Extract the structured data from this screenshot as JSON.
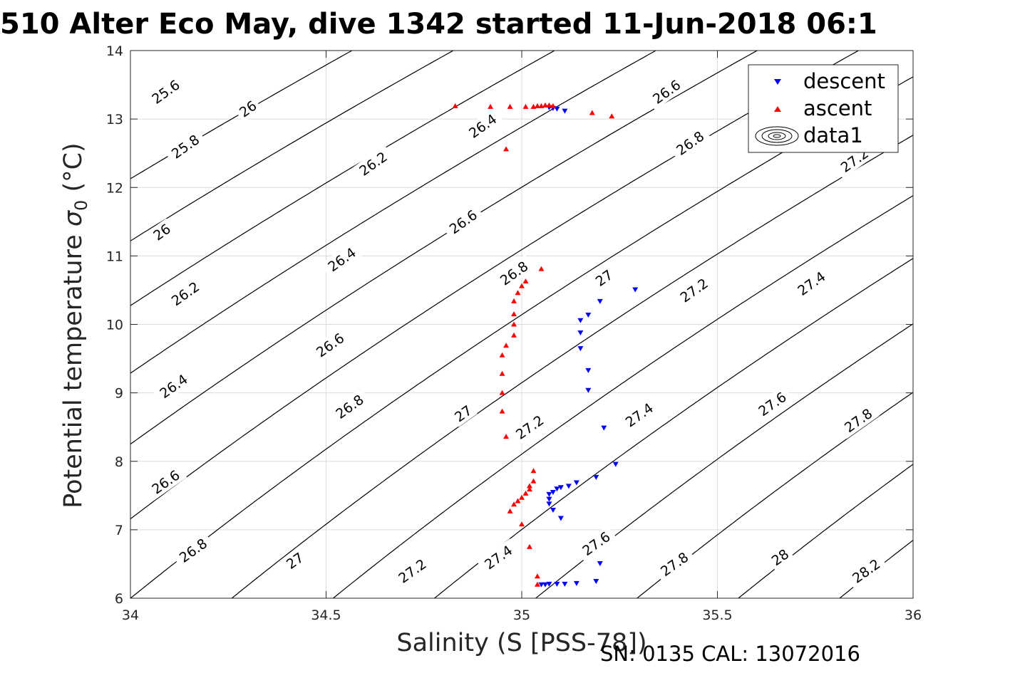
{
  "title": "510 Alter Eco May, dive 1342 started 11-Jun-2018 06:1",
  "footer": "SN: 0135  CAL: 13072016",
  "chart_data": {
    "type": "scatter",
    "xlabel": "Salinity (S [PSS-78])",
    "ylabel_main": "Potential temperature",
    "ylabel_symbol": "σ",
    "ylabel_subscript": "0",
    "ylabel_unit": "(°C)",
    "xlim": [
      34,
      36
    ],
    "ylim": [
      6,
      14
    ],
    "xticks": [
      34,
      34.5,
      35,
      35.5,
      36
    ],
    "xtick_labels": [
      "34",
      "34.5",
      "35",
      "35.5",
      "36"
    ],
    "yticks": [
      6,
      7,
      8,
      9,
      10,
      11,
      12,
      13,
      14
    ],
    "ytick_labels": [
      "6",
      "7",
      "8",
      "9",
      "10",
      "11",
      "12",
      "13",
      "14"
    ],
    "grid": true,
    "legend_position": "top-right",
    "legend": [
      "descent",
      "ascent",
      "data1"
    ],
    "series": [
      {
        "name": "descent",
        "marker": "triangle-down",
        "color": "#0000ff",
        "points": [
          [
            35.07,
            13.17
          ],
          [
            35.08,
            13.16
          ],
          [
            35.09,
            13.15
          ],
          [
            35.11,
            13.12
          ],
          [
            35.29,
            10.51
          ],
          [
            35.2,
            10.34
          ],
          [
            35.17,
            10.14
          ],
          [
            35.15,
            10.06
          ],
          [
            35.15,
            9.88
          ],
          [
            35.15,
            9.65
          ],
          [
            35.17,
            9.33
          ],
          [
            35.17,
            9.04
          ],
          [
            35.21,
            8.49
          ],
          [
            35.24,
            7.96
          ],
          [
            35.19,
            7.77
          ],
          [
            35.14,
            7.69
          ],
          [
            35.12,
            7.64
          ],
          [
            35.1,
            7.62
          ],
          [
            35.09,
            7.6
          ],
          [
            35.08,
            7.55
          ],
          [
            35.07,
            7.52
          ],
          [
            35.07,
            7.45
          ],
          [
            35.07,
            7.38
          ],
          [
            35.08,
            7.29
          ],
          [
            35.1,
            7.17
          ],
          [
            35.2,
            6.51
          ],
          [
            35.19,
            6.25
          ],
          [
            35.14,
            6.22
          ],
          [
            35.11,
            6.21
          ],
          [
            35.09,
            6.21
          ],
          [
            35.07,
            6.21
          ],
          [
            35.06,
            6.2
          ],
          [
            35.05,
            6.2
          ]
        ]
      },
      {
        "name": "ascent",
        "marker": "triangle-up",
        "color": "#ff0000",
        "points": [
          [
            34.83,
            13.19
          ],
          [
            34.92,
            13.18
          ],
          [
            34.97,
            13.18
          ],
          [
            35.01,
            13.18
          ],
          [
            35.03,
            13.18
          ],
          [
            35.04,
            13.19
          ],
          [
            35.05,
            13.19
          ],
          [
            35.06,
            13.2
          ],
          [
            35.07,
            13.2
          ],
          [
            35.08,
            13.19
          ],
          [
            35.18,
            13.09
          ],
          [
            35.23,
            13.04
          ],
          [
            34.96,
            12.56
          ],
          [
            35.05,
            10.81
          ],
          [
            35.01,
            10.63
          ],
          [
            35.0,
            10.56
          ],
          [
            34.99,
            10.46
          ],
          [
            34.98,
            10.34
          ],
          [
            34.98,
            10.15
          ],
          [
            34.98,
            10.0
          ],
          [
            34.98,
            9.84
          ],
          [
            34.96,
            9.69
          ],
          [
            34.95,
            9.55
          ],
          [
            34.95,
            9.28
          ],
          [
            34.95,
            9.0
          ],
          [
            34.95,
            8.73
          ],
          [
            34.96,
            8.36
          ],
          [
            35.03,
            7.86
          ],
          [
            35.03,
            7.71
          ],
          [
            35.02,
            7.64
          ],
          [
            35.02,
            7.59
          ],
          [
            35.01,
            7.53
          ],
          [
            35.0,
            7.47
          ],
          [
            34.99,
            7.42
          ],
          [
            34.98,
            7.37
          ],
          [
            34.97,
            7.27
          ],
          [
            35.0,
            7.08
          ],
          [
            35.02,
            6.75
          ],
          [
            35.04,
            6.32
          ],
          [
            35.04,
            6.2
          ]
        ]
      }
    ],
    "contour_levels": [
      "25.6",
      "25.8",
      "26",
      "26.2",
      "26.4",
      "26.6",
      "26.8",
      "27",
      "27.2",
      "27.4",
      "27.6",
      "27.8",
      "28",
      "28.2"
    ],
    "contour_labels": [
      {
        "text": "25.6",
        "s": 34.09,
        "t": 13.4
      },
      {
        "text": "26",
        "s": 34.3,
        "t": 13.15
      },
      {
        "text": "25.8",
        "s": 34.14,
        "t": 12.6
      },
      {
        "text": "26.2",
        "s": 34.62,
        "t": 12.35
      },
      {
        "text": "26",
        "s": 34.08,
        "t": 11.35
      },
      {
        "text": "26.4",
        "s": 34.9,
        "t": 12.9
      },
      {
        "text": "26.6",
        "s": 35.37,
        "t": 13.4
      },
      {
        "text": "26.8",
        "s": 35.43,
        "t": 12.65
      },
      {
        "text": "27.2",
        "s": 35.85,
        "t": 12.4
      },
      {
        "text": "26.6",
        "s": 34.85,
        "t": 11.5
      },
      {
        "text": "26.4",
        "s": 34.54,
        "t": 10.95
      },
      {
        "text": "26.2",
        "s": 34.14,
        "t": 10.45
      },
      {
        "text": "26.8",
        "s": 34.98,
        "t": 10.75
      },
      {
        "text": "27",
        "s": 35.21,
        "t": 10.68
      },
      {
        "text": "27.2",
        "s": 35.44,
        "t": 10.5
      },
      {
        "text": "27.4",
        "s": 35.74,
        "t": 10.6
      },
      {
        "text": "26.6",
        "s": 34.51,
        "t": 9.7
      },
      {
        "text": "26.4",
        "s": 34.11,
        "t": 9.1
      },
      {
        "text": "26.8",
        "s": 34.56,
        "t": 8.8
      },
      {
        "text": "27",
        "s": 34.85,
        "t": 8.7
      },
      {
        "text": "27.2",
        "s": 35.02,
        "t": 8.5
      },
      {
        "text": "27.4",
        "s": 35.3,
        "t": 8.68
      },
      {
        "text": "27.6",
        "s": 35.64,
        "t": 8.84
      },
      {
        "text": "27.8",
        "s": 35.86,
        "t": 8.6
      },
      {
        "text": "26.6",
        "s": 34.09,
        "t": 7.7
      },
      {
        "text": "26.8",
        "s": 34.16,
        "t": 6.7
      },
      {
        "text": "27",
        "s": 34.42,
        "t": 6.55
      },
      {
        "text": "27.2",
        "s": 34.72,
        "t": 6.4
      },
      {
        "text": "27.4",
        "s": 34.94,
        "t": 6.6
      },
      {
        "text": "27.6",
        "s": 35.19,
        "t": 6.8
      },
      {
        "text": "27.8",
        "s": 35.39,
        "t": 6.5
      },
      {
        "text": "28",
        "s": 35.66,
        "t": 6.6
      },
      {
        "text": "28.2",
        "s": 35.88,
        "t": 6.4
      }
    ]
  },
  "legend_colors": {
    "descent": "#0000ff",
    "ascent": "#ff0000",
    "contour": "#000000"
  }
}
